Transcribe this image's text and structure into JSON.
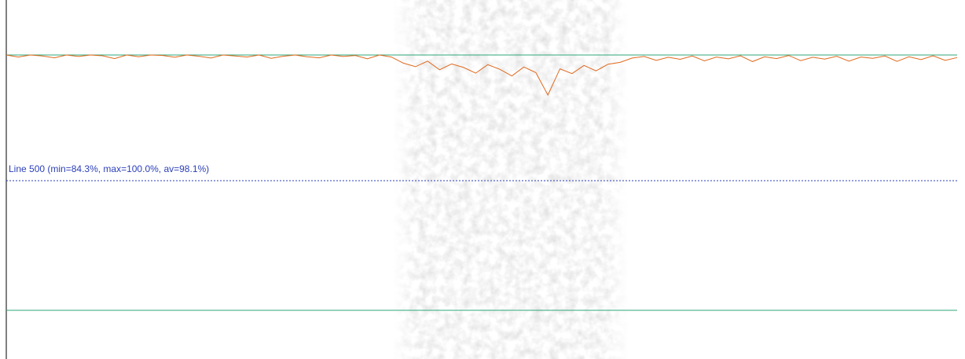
{
  "profile": {
    "label": "Line 500 (min=84.3%, max=100.0%, av=98.1%)",
    "color": "#e0691c",
    "ylim": [
      0,
      100
    ],
    "values": [
      100,
      99.2,
      100,
      99.6,
      98.9,
      100,
      99.4,
      100,
      99.7,
      98.6,
      100,
      99.3,
      100,
      99.8,
      99.1,
      100,
      99.5,
      98.8,
      100,
      99.6,
      99.2,
      100,
      98.7,
      99.5,
      100,
      99.3,
      98.9,
      100,
      99.4,
      99.8,
      98.5,
      100,
      99.2,
      96.8,
      95.4,
      97.6,
      94.2,
      96.5,
      95.1,
      92.9,
      96.2,
      94.4,
      91.8,
      95.3,
      93.1,
      84.3,
      94.6,
      92.7,
      95.9,
      93.8,
      96.4,
      97.1,
      98.8,
      99.4,
      97.9,
      99.1,
      98.3,
      99.6,
      97.7,
      99.2,
      98.5,
      99.7,
      97.4,
      99.3,
      98.6,
      99.8,
      97.8,
      99.1,
      98.4,
      99.5,
      97.6,
      99.2,
      98.7,
      99.6,
      97.5,
      99.3,
      98.2,
      99.7,
      97.9,
      99.0
    ]
  }
}
